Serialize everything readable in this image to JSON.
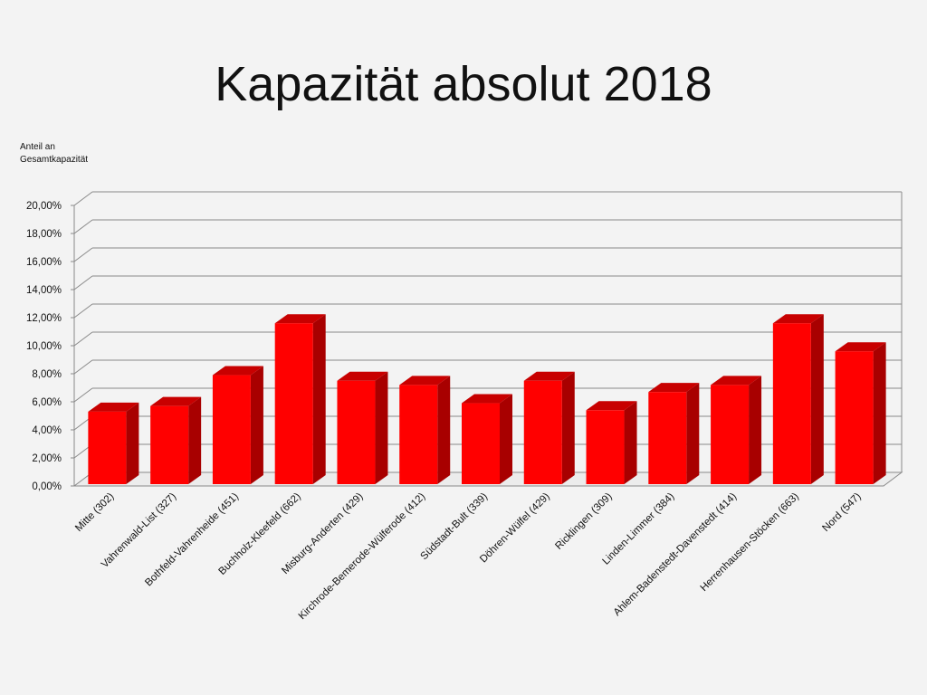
{
  "slide": {
    "title": "Kapazität absolut 2018"
  },
  "chart_data": {
    "type": "bar",
    "title": "Kapazität absolut 2018",
    "ylabel": "Anteil an Gesamtkapazität",
    "ylabel_lines": [
      "Anteil an",
      "Gesamtkapazität"
    ],
    "xlabel": "",
    "ylim": [
      0,
      20
    ],
    "y_unit": "%",
    "y_ticks": [
      "0,00%",
      "2,00%",
      "4,00%",
      "6,00%",
      "8,00%",
      "10,00%",
      "12,00%",
      "14,00%",
      "16,00%",
      "18,00%",
      "20,00%"
    ],
    "grid": true,
    "legend": "none",
    "bar_style": "3d",
    "categories": [
      "Mitte  (302)",
      "Vahrenwald-List  (327)",
      "Bothfeld-Vahrenheide  (451)",
      "Buchholz-Kleefeld  (662)",
      "Misburg-Anderten  (429)",
      "Kirchrode-Bemerode-Wülferode (412)",
      "Südstadt-Bult  (339)",
      "Döhren-Wülfel  (429)",
      "Ricklingen  (309)",
      "Linden-Limmer  (384)",
      "Ahlem-Badenstedt-Davenstedt  (414)",
      "Herrenhausen-Stöcken  (663)",
      "Nord  (547)"
    ],
    "values": [
      5.3,
      5.7,
      7.9,
      11.6,
      7.5,
      7.2,
      5.9,
      7.5,
      5.4,
      6.7,
      7.2,
      11.6,
      9.6
    ],
    "colors": {
      "bar_front": "#ff0000",
      "bar_side": "#a80000",
      "bar_top": "#c80000",
      "grid": "#8a8a8a",
      "wall": "#f3f3f3"
    }
  }
}
